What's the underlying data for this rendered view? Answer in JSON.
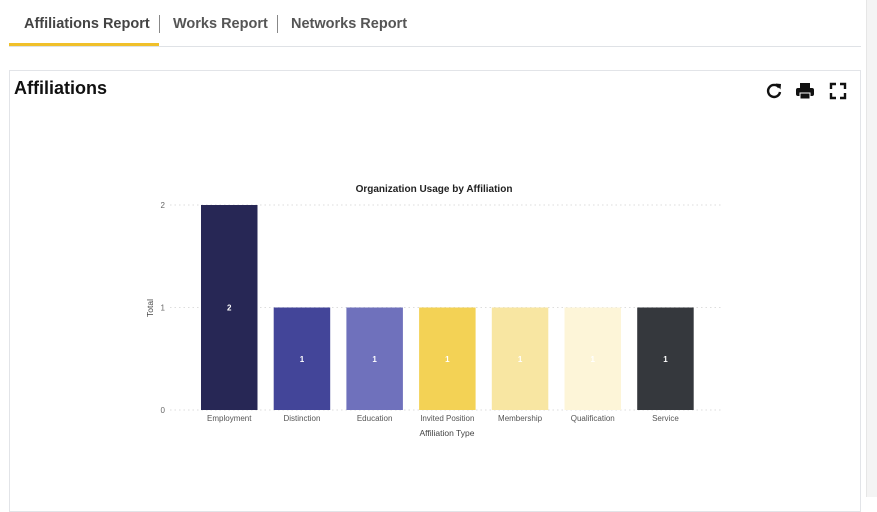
{
  "tabs": [
    {
      "label": "Affiliations Report",
      "active": true
    },
    {
      "label": "Works Report",
      "active": false
    },
    {
      "label": "Networks Report",
      "active": false
    }
  ],
  "card": {
    "title": "Affiliations",
    "icons": [
      "refresh-icon",
      "print-icon",
      "fullscreen-icon"
    ]
  },
  "colors": {
    "accent": "#f0c02a"
  },
  "chart_data": {
    "type": "bar",
    "title": "Organization Usage by Affiliation",
    "xlabel": "Affiliation Type",
    "ylabel": "Total",
    "categories": [
      "Employment",
      "Distinction",
      "Education",
      "Invited Position",
      "Membership",
      "Qualification",
      "Service"
    ],
    "values": [
      2,
      1,
      1,
      1,
      1,
      1,
      1
    ],
    "colors": [
      "#272755",
      "#434599",
      "#6f71bc",
      "#f3d255",
      "#f8e6a2",
      "#fdf5d8",
      "#35383d"
    ],
    "data_labels": [
      "2",
      "1",
      "1",
      "1",
      "1",
      "1",
      "1"
    ],
    "yticks": [
      0,
      1,
      2
    ],
    "ylim": [
      0,
      2
    ],
    "grid": true
  }
}
